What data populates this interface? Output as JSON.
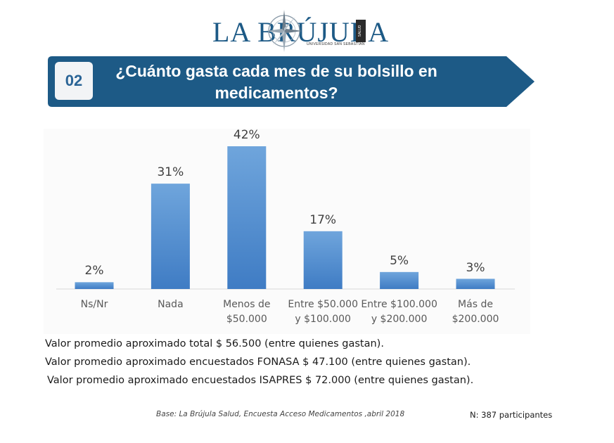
{
  "brand": {
    "name": "LA BRÚJULA",
    "subtitle": "UNIVERSIDAD SAN SEBASTIÁN",
    "tag": "SALUD"
  },
  "question": {
    "number": "02",
    "title_line1": "¿Cuánto gasta cada mes de su bolsillo en",
    "title_line2": "medicamentos?"
  },
  "colors": {
    "banner": "#1d5a86",
    "bar_top": "#6fa5dc",
    "bar_bottom": "#3f7cc4",
    "number_text": "#2a6496"
  },
  "chart_data": {
    "type": "bar",
    "categories": [
      [
        "Ns/Nr"
      ],
      [
        "Nada"
      ],
      [
        "Menos de",
        "$50.000"
      ],
      [
        "Entre $50.000",
        "y $100.000"
      ],
      [
        "Entre $100.000",
        "y $200.000"
      ],
      [
        "Más de",
        "$200.000"
      ]
    ],
    "values": [
      2,
      31,
      42,
      17,
      5,
      3
    ],
    "value_labels": [
      "2%",
      "31%",
      "42%",
      "17%",
      "5%",
      "3%"
    ],
    "unit": "%",
    "ylim": [
      0,
      42
    ],
    "grid": false,
    "legend": "none"
  },
  "notes": [
    "Valor promedio aproximado total $ 56.500 (entre quienes gastan).",
    "Valor promedio aproximado encuestados FONASA  $ 47.100 (entre quienes gastan).",
    "Valor promedio aproximado encuestados ISAPRES  $ 72.000 (entre quienes gastan)."
  ],
  "footer": {
    "base": "Base: La Brújula Salud, Encuesta Acceso Medicamentos ,abril 2018",
    "n": "N: 387 participantes"
  }
}
